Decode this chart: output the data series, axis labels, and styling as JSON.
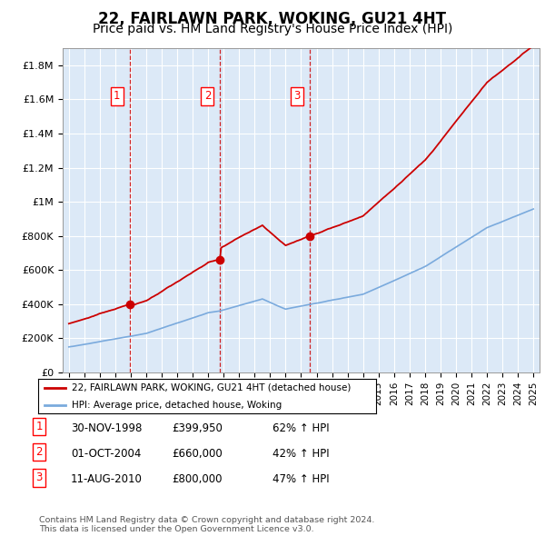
{
  "title": "22, FAIRLAWN PARK, WOKING, GU21 4HT",
  "subtitle": "Price paid vs. HM Land Registry's House Price Index (HPI)",
  "plot_bg_color": "#dce9f7",
  "ylim": [
    0,
    1900000
  ],
  "yticks": [
    0,
    200000,
    400000,
    600000,
    800000,
    1000000,
    1200000,
    1400000,
    1600000,
    1800000
  ],
  "ytick_labels": [
    "£0",
    "£200K",
    "£400K",
    "£600K",
    "£800K",
    "£1M",
    "£1.2M",
    "£1.4M",
    "£1.6M",
    "£1.8M"
  ],
  "sale_dates_yr": [
    1998.917,
    2004.75,
    2010.583
  ],
  "sale_prices": [
    399950,
    660000,
    800000
  ],
  "sale_labels": [
    "1",
    "2",
    "3"
  ],
  "legend_sale": "22, FAIRLAWN PARK, WOKING, GU21 4HT (detached house)",
  "legend_hpi": "HPI: Average price, detached house, Woking",
  "table_rows": [
    [
      "1",
      "30-NOV-1998",
      "£399,950",
      "62% ↑ HPI"
    ],
    [
      "2",
      "01-OCT-2004",
      "£660,000",
      "42% ↑ HPI"
    ],
    [
      "3",
      "11-AUG-2010",
      "£800,000",
      "47% ↑ HPI"
    ]
  ],
  "footer": "Contains HM Land Registry data © Crown copyright and database right 2024.\nThis data is licensed under the Open Government Licence v3.0.",
  "red_color": "#cc0000",
  "blue_color": "#7aaadd",
  "grid_color": "#ffffff",
  "title_fontsize": 12,
  "subtitle_fontsize": 10,
  "tick_fontsize": 8
}
